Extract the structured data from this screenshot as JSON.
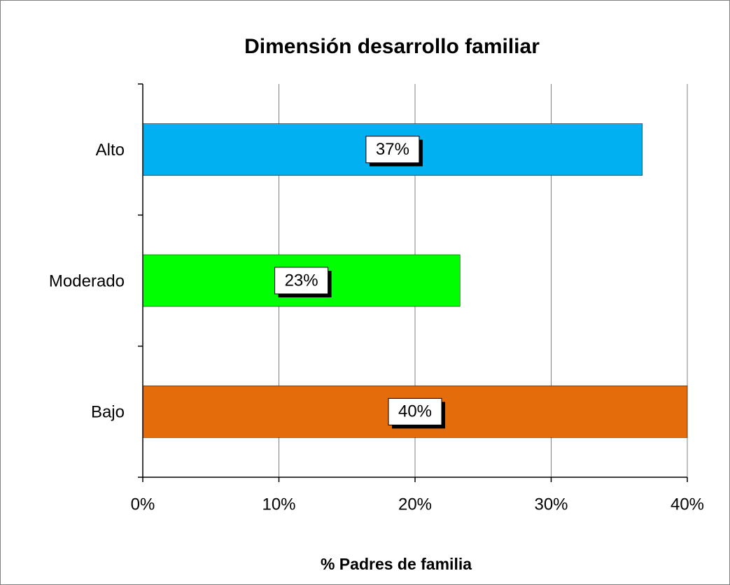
{
  "chart_data": {
    "type": "bar",
    "orientation": "horizontal",
    "title": "Dimensión desarrollo familiar",
    "x_label": "% Padres de familia",
    "categories": [
      "Alto",
      "Moderado",
      "Bajo"
    ],
    "values": [
      36.7,
      23.3,
      40
    ],
    "value_labels": [
      "37%",
      "23%",
      "40%"
    ],
    "colors": [
      "#00b0f0",
      "#00ff00",
      "#e46c0a"
    ],
    "xlim": [
      0,
      40
    ],
    "xticks": [
      {
        "value": 0,
        "label": "0%"
      },
      {
        "value": 10,
        "label": "10%"
      },
      {
        "value": 20,
        "label": "20%"
      },
      {
        "value": 30,
        "label": "30%"
      },
      {
        "value": 40,
        "label": "40%"
      }
    ],
    "grid": true
  }
}
